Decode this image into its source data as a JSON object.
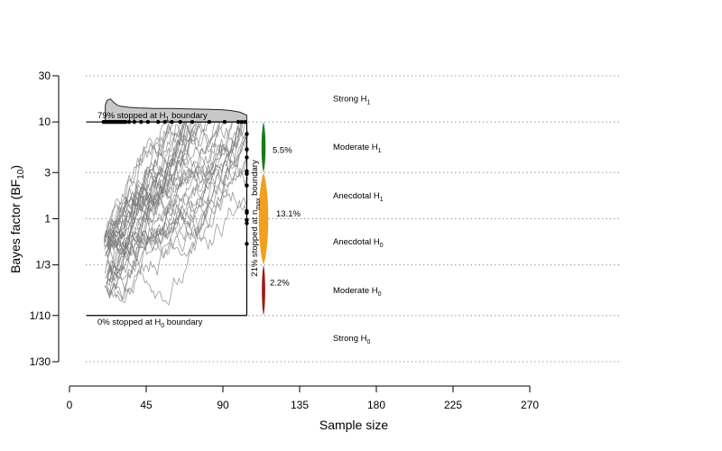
{
  "chart_data": {
    "type": "line",
    "xlabel": "Sample size",
    "ylabel_main": "Bayes factor (BF",
    "ylabel_sub": "10",
    "ylabel_end": ")",
    "xlim": [
      0,
      270
    ],
    "x_ticks": [
      0,
      45,
      90,
      135,
      180,
      225,
      270
    ],
    "x_tick_labels": [
      "0",
      "45",
      "90",
      "135",
      "180",
      "225",
      "270"
    ],
    "y_scale": "log",
    "ylim": [
      0.0333,
      30
    ],
    "y_ticks": [
      0.0333,
      0.1,
      0.3333,
      1,
      3,
      10,
      30
    ],
    "y_tick_labels": [
      "1/30",
      "1/10",
      "1/3",
      "1",
      "3",
      "10",
      "30"
    ],
    "evidence_labels": [
      {
        "text": "Strong H",
        "sub": "1",
        "y": 17.3
      },
      {
        "text": "Moderate H",
        "sub": "1",
        "y": 5.5
      },
      {
        "text": "Anecdotal H",
        "sub": "1",
        "y": 1.73
      },
      {
        "text": "Anecdotal H",
        "sub": "0",
        "y": 0.577
      },
      {
        "text": "Moderate H",
        "sub": "0",
        "y": 0.182
      },
      {
        "text": "Strong H",
        "sub": "0",
        "y": 0.058
      }
    ],
    "h1_boundary": {
      "bf": 10,
      "x_start": 10,
      "x_end": 104
    },
    "h0_boundary": {
      "bf": 0.1,
      "x_start": 10,
      "x_end": 104
    },
    "nmax": 104,
    "h1_label_pre": "79% stopped at H",
    "h1_label_sub": "1",
    "h1_label_post": " boundary",
    "h0_label_pre": "0% stopped at H",
    "h0_label_sub": "0",
    "h0_label_post": " boundary",
    "nmax_label_pre": "21% stopped at n",
    "nmax_label_sub": "max",
    "nmax_label_post": " boundary",
    "h1_stop_points": [
      20,
      21,
      22,
      23,
      24,
      25,
      26,
      27,
      28,
      29,
      30,
      31,
      32,
      33,
      35,
      38,
      42,
      46,
      52,
      56,
      60,
      65,
      72,
      82,
      91,
      99,
      101,
      103
    ],
    "h1_density": {
      "x": [
        21,
        22,
        24,
        26,
        28,
        30,
        35,
        40,
        50,
        60,
        70,
        80,
        90,
        95,
        100,
        104
      ],
      "h": [
        0.62,
        0.8,
        0.85,
        0.72,
        0.62,
        0.58,
        0.54,
        0.52,
        0.5,
        0.5,
        0.48,
        0.47,
        0.45,
        0.42,
        0.36,
        0.25
      ]
    },
    "nmax_end_points": [
      7.5,
      5.2,
      4.3,
      3.1,
      2.9,
      2.2,
      1.2,
      1.15,
      0.97,
      0.9,
      0.55
    ],
    "pct_moderate_h1": "5.5%",
    "pct_anecdotal": "13.1%",
    "pct_moderate_h0": "2.2%",
    "colors": {
      "moderate_h1": "#1a7a1a",
      "anecdotal": "#f0a020",
      "moderate_h0": "#9b1c1c",
      "paths": "#7a7a7a",
      "density_fill": "#c8c8c8",
      "gridline": "#8a8a8a"
    },
    "grid": "horizontal dotted",
    "n_paths": 40
  }
}
